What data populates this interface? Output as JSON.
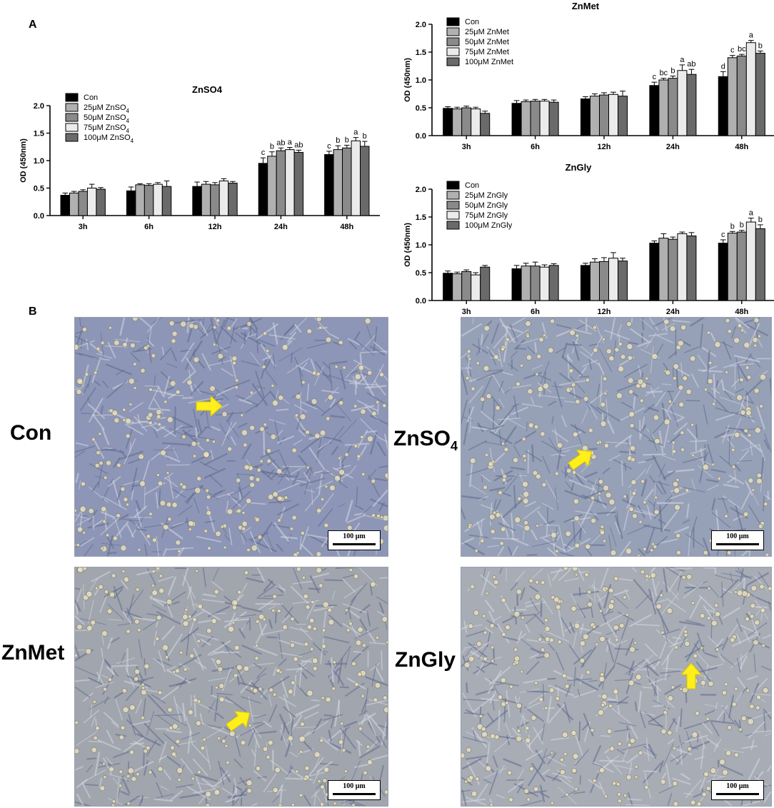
{
  "panels": {
    "a": "A",
    "b": "B"
  },
  "colors": {
    "con": "#000000",
    "c25": "#b0b0b0",
    "c50": "#8a8a8a",
    "c75": "#ebebeb",
    "c100": "#6a6a6a",
    "arrow": "#ffef1a"
  },
  "chart_data": [
    {
      "type": "bar",
      "title": "ZnSO4",
      "ylabel": "OD (450nm)",
      "xlabel": "",
      "ylim": [
        0,
        2.0
      ],
      "yticks": [
        "0.0",
        "0.5",
        "1.0",
        "1.5",
        "2.0"
      ],
      "categories": [
        "3h",
        "6h",
        "12h",
        "24h",
        "48h"
      ],
      "series": [
        {
          "name": "Con",
          "sub": "",
          "values": [
            0.37,
            0.45,
            0.53,
            0.95,
            1.11
          ],
          "errors": [
            0.04,
            0.07,
            0.08,
            0.1,
            0.06
          ]
        },
        {
          "name": "25μM ZnSO",
          "sub": "4",
          "values": [
            0.41,
            0.56,
            0.57,
            1.08,
            1.2
          ],
          "errors": [
            0.03,
            0.02,
            0.05,
            0.08,
            0.07
          ]
        },
        {
          "name": "50μM ZnSO",
          "sub": "4",
          "values": [
            0.44,
            0.55,
            0.56,
            1.18,
            1.23
          ],
          "errors": [
            0.03,
            0.03,
            0.04,
            0.05,
            0.05
          ]
        },
        {
          "name": "75μM ZnSO",
          "sub": "4",
          "values": [
            0.5,
            0.57,
            0.63,
            1.2,
            1.36
          ],
          "errors": [
            0.07,
            0.03,
            0.04,
            0.04,
            0.06
          ]
        },
        {
          "name": "100μM ZnSO",
          "sub": "4",
          "values": [
            0.48,
            0.53,
            0.59,
            1.15,
            1.26
          ],
          "errors": [
            0.03,
            0.1,
            0.03,
            0.04,
            0.09
          ]
        }
      ],
      "sig_labels": [
        [
          "",
          "",
          "",
          "c",
          "c"
        ],
        [
          "",
          "",
          "",
          "b",
          "b"
        ],
        [
          "",
          "",
          "",
          "ab",
          "b"
        ],
        [
          "",
          "",
          "",
          "a",
          "a"
        ],
        [
          "",
          "",
          "",
          "ab",
          "b"
        ]
      ]
    },
    {
      "type": "bar",
      "title": "ZnMet",
      "ylabel": "OD (450nm)",
      "xlabel": "",
      "ylim": [
        0,
        2.0
      ],
      "yticks": [
        "0.0",
        "0.5",
        "1.0",
        "1.5",
        "2.0"
      ],
      "categories": [
        "3h",
        "6h",
        "12h",
        "24h",
        "48h"
      ],
      "series": [
        {
          "name": "Con",
          "sub": "",
          "values": [
            0.49,
            0.58,
            0.66,
            0.9,
            1.06
          ],
          "errors": [
            0.03,
            0.05,
            0.04,
            0.06,
            0.09
          ]
        },
        {
          "name": "25μM ZnMet",
          "sub": "",
          "values": [
            0.48,
            0.61,
            0.71,
            1.0,
            1.4
          ],
          "errors": [
            0.03,
            0.03,
            0.04,
            0.03,
            0.04
          ]
        },
        {
          "name": "50μM ZnMet",
          "sub": "",
          "values": [
            0.5,
            0.62,
            0.73,
            1.03,
            1.43
          ],
          "errors": [
            0.03,
            0.03,
            0.04,
            0.04,
            0.03
          ]
        },
        {
          "name": "75μM ZnMet",
          "sub": "",
          "values": [
            0.48,
            0.62,
            0.74,
            1.17,
            1.67
          ],
          "errors": [
            0.03,
            0.03,
            0.04,
            0.1,
            0.04
          ]
        },
        {
          "name": "100μM ZnMet",
          "sub": "",
          "values": [
            0.4,
            0.6,
            0.71,
            1.1,
            1.48
          ],
          "errors": [
            0.04,
            0.04,
            0.09,
            0.09,
            0.04
          ]
        }
      ],
      "sig_labels": [
        [
          "",
          "",
          "",
          "c",
          "d"
        ],
        [
          "",
          "",
          "",
          "bc",
          "c"
        ],
        [
          "",
          "",
          "",
          "b",
          "bc"
        ],
        [
          "",
          "",
          "",
          "a",
          "a"
        ],
        [
          "",
          "",
          "",
          "ab",
          "b"
        ]
      ]
    },
    {
      "type": "bar",
      "title": "ZnGly",
      "ylabel": "OD (450nm)",
      "xlabel": "",
      "ylim": [
        0,
        2.0
      ],
      "yticks": [
        "0.0",
        "0.5",
        "1.0",
        "1.5",
        "2.0"
      ],
      "categories": [
        "3h",
        "6h",
        "12h",
        "24h",
        "48h"
      ],
      "series": [
        {
          "name": "Con",
          "sub": "",
          "values": [
            0.49,
            0.57,
            0.63,
            1.03,
            1.03
          ],
          "errors": [
            0.04,
            0.06,
            0.04,
            0.04,
            0.06
          ]
        },
        {
          "name": "25μM ZnGly",
          "sub": "",
          "values": [
            0.48,
            0.62,
            0.69,
            1.12,
            1.21
          ],
          "errors": [
            0.03,
            0.05,
            0.06,
            0.08,
            0.03
          ]
        },
        {
          "name": "50μM ZnGly",
          "sub": "",
          "values": [
            0.52,
            0.62,
            0.7,
            1.1,
            1.23
          ],
          "errors": [
            0.03,
            0.07,
            0.07,
            0.04,
            0.03
          ]
        },
        {
          "name": "75μM ZnGly",
          "sub": "",
          "values": [
            0.46,
            0.6,
            0.76,
            1.2,
            1.41
          ],
          "errors": [
            0.04,
            0.04,
            0.1,
            0.03,
            0.07
          ]
        },
        {
          "name": "100μM ZnGly",
          "sub": "",
          "values": [
            0.6,
            0.63,
            0.71,
            1.16,
            1.29
          ],
          "errors": [
            0.03,
            0.03,
            0.05,
            0.06,
            0.07
          ]
        }
      ],
      "sig_labels": [
        [
          "",
          "",
          "",
          "",
          "c"
        ],
        [
          "",
          "",
          "",
          "",
          "b"
        ],
        [
          "",
          "",
          "",
          "",
          "b"
        ],
        [
          "",
          "",
          "",
          "",
          "a"
        ],
        [
          "",
          "",
          "",
          "",
          "b"
        ]
      ]
    }
  ],
  "micrographs": [
    {
      "label": "Con",
      "label_sub": "",
      "scale": "100 μm",
      "tint": "#8d96b6",
      "arrow_dir": "right"
    },
    {
      "label": "ZnSO",
      "label_sub": "4",
      "scale": "100 μm",
      "tint": "#96a0b7",
      "arrow_dir": "upright"
    },
    {
      "label": "ZnMet",
      "label_sub": "",
      "scale": "100 μm",
      "tint": "#a0a5ae",
      "arrow_dir": "upright"
    },
    {
      "label": "ZnGly",
      "label_sub": "",
      "scale": "100 μm",
      "tint": "#a7acb5",
      "arrow_dir": "up"
    }
  ]
}
